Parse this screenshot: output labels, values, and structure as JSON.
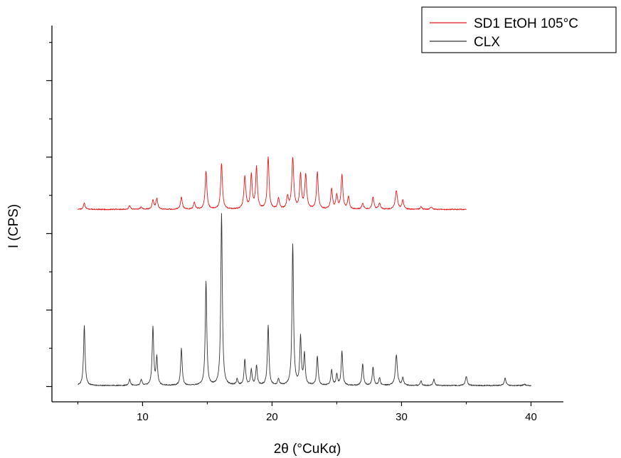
{
  "chart_data": {
    "type": "line",
    "xlabel": "2θ (°CuKα)",
    "ylabel": "I (CPS)",
    "xlim": [
      3,
      42.5
    ],
    "ylim": [
      -5,
      118
    ],
    "x_ticks": [
      10,
      20,
      30,
      40
    ],
    "y_major_ticks": [
      0,
      25,
      50,
      75,
      100
    ],
    "y_minor_ticks": [
      12.5,
      37.5,
      62.5,
      87.5,
      112.5
    ],
    "legend_position": "top-right",
    "grid": false,
    "series": [
      {
        "name": "SD1 EtOH 105°C",
        "color": "#e8191b",
        "x_range": [
          5.0,
          35.0
        ],
        "baseline": 58.3,
        "peaks": [
          {
            "x": 5.5,
            "h": 2.0,
            "w": 0.08
          },
          {
            "x": 9.0,
            "h": 1.2,
            "w": 0.08
          },
          {
            "x": 9.9,
            "h": 0.9,
            "w": 0.08
          },
          {
            "x": 10.8,
            "h": 3.0,
            "w": 0.08
          },
          {
            "x": 11.1,
            "h": 3.5,
            "w": 0.08
          },
          {
            "x": 13.0,
            "h": 4.0,
            "w": 0.08
          },
          {
            "x": 14.0,
            "h": 2.2,
            "w": 0.08
          },
          {
            "x": 14.9,
            "h": 12.5,
            "w": 0.08
          },
          {
            "x": 16.1,
            "h": 15.0,
            "w": 0.08
          },
          {
            "x": 17.9,
            "h": 10.5,
            "w": 0.09
          },
          {
            "x": 18.4,
            "h": 11.0,
            "w": 0.08
          },
          {
            "x": 18.8,
            "h": 13.5,
            "w": 0.08
          },
          {
            "x": 19.7,
            "h": 17.0,
            "w": 0.08
          },
          {
            "x": 20.5,
            "h": 3.5,
            "w": 0.08
          },
          {
            "x": 21.2,
            "h": 4.0,
            "w": 0.08
          },
          {
            "x": 21.6,
            "h": 16.5,
            "w": 0.09
          },
          {
            "x": 22.2,
            "h": 11.0,
            "w": 0.08
          },
          {
            "x": 22.6,
            "h": 11.0,
            "w": 0.09
          },
          {
            "x": 23.5,
            "h": 12.0,
            "w": 0.08
          },
          {
            "x": 24.6,
            "h": 6.5,
            "w": 0.08
          },
          {
            "x": 25.0,
            "h": 4.5,
            "w": 0.08
          },
          {
            "x": 25.4,
            "h": 11.0,
            "w": 0.08
          },
          {
            "x": 25.9,
            "h": 4.0,
            "w": 0.08
          },
          {
            "x": 27.0,
            "h": 2.0,
            "w": 0.08
          },
          {
            "x": 27.8,
            "h": 4.0,
            "w": 0.08
          },
          {
            "x": 28.3,
            "h": 2.0,
            "w": 0.08
          },
          {
            "x": 29.6,
            "h": 6.0,
            "w": 0.1
          },
          {
            "x": 30.1,
            "h": 3.0,
            "w": 0.08
          },
          {
            "x": 31.5,
            "h": 0.8,
            "w": 0.08
          },
          {
            "x": 32.3,
            "h": 0.8,
            "w": 0.08
          }
        ]
      },
      {
        "name": "CLX",
        "color": "#333333",
        "x_range": [
          5.0,
          40.0
        ],
        "baseline": 0.3,
        "peaks": [
          {
            "x": 5.5,
            "h": 19.5,
            "w": 0.07
          },
          {
            "x": 9.0,
            "h": 2.0,
            "w": 0.07
          },
          {
            "x": 9.9,
            "h": 2.0,
            "w": 0.07
          },
          {
            "x": 10.8,
            "h": 19.0,
            "w": 0.07
          },
          {
            "x": 11.1,
            "h": 9.0,
            "w": 0.07
          },
          {
            "x": 13.0,
            "h": 12.0,
            "w": 0.07
          },
          {
            "x": 14.9,
            "h": 34.0,
            "w": 0.07
          },
          {
            "x": 16.1,
            "h": 56.0,
            "w": 0.07
          },
          {
            "x": 17.3,
            "h": 2.0,
            "w": 0.07
          },
          {
            "x": 17.9,
            "h": 8.5,
            "w": 0.07
          },
          {
            "x": 18.4,
            "h": 5.0,
            "w": 0.07
          },
          {
            "x": 18.8,
            "h": 6.5,
            "w": 0.07
          },
          {
            "x": 19.7,
            "h": 19.5,
            "w": 0.07
          },
          {
            "x": 20.5,
            "h": 2.0,
            "w": 0.07
          },
          {
            "x": 21.6,
            "h": 46.0,
            "w": 0.07
          },
          {
            "x": 22.2,
            "h": 15.5,
            "w": 0.07
          },
          {
            "x": 22.5,
            "h": 10.0,
            "w": 0.07
          },
          {
            "x": 23.5,
            "h": 9.5,
            "w": 0.07
          },
          {
            "x": 24.6,
            "h": 5.0,
            "w": 0.07
          },
          {
            "x": 25.0,
            "h": 3.5,
            "w": 0.07
          },
          {
            "x": 25.4,
            "h": 11.0,
            "w": 0.07
          },
          {
            "x": 27.0,
            "h": 7.0,
            "w": 0.07
          },
          {
            "x": 27.8,
            "h": 6.0,
            "w": 0.07
          },
          {
            "x": 28.3,
            "h": 2.5,
            "w": 0.07
          },
          {
            "x": 29.6,
            "h": 10.0,
            "w": 0.09
          },
          {
            "x": 30.1,
            "h": 2.5,
            "w": 0.07
          },
          {
            "x": 31.5,
            "h": 1.5,
            "w": 0.07
          },
          {
            "x": 32.5,
            "h": 2.0,
            "w": 0.07
          },
          {
            "x": 35.0,
            "h": 3.0,
            "w": 0.08
          },
          {
            "x": 38.0,
            "h": 2.5,
            "w": 0.08
          },
          {
            "x": 39.5,
            "h": 0.5,
            "w": 0.08
          }
        ]
      }
    ]
  }
}
